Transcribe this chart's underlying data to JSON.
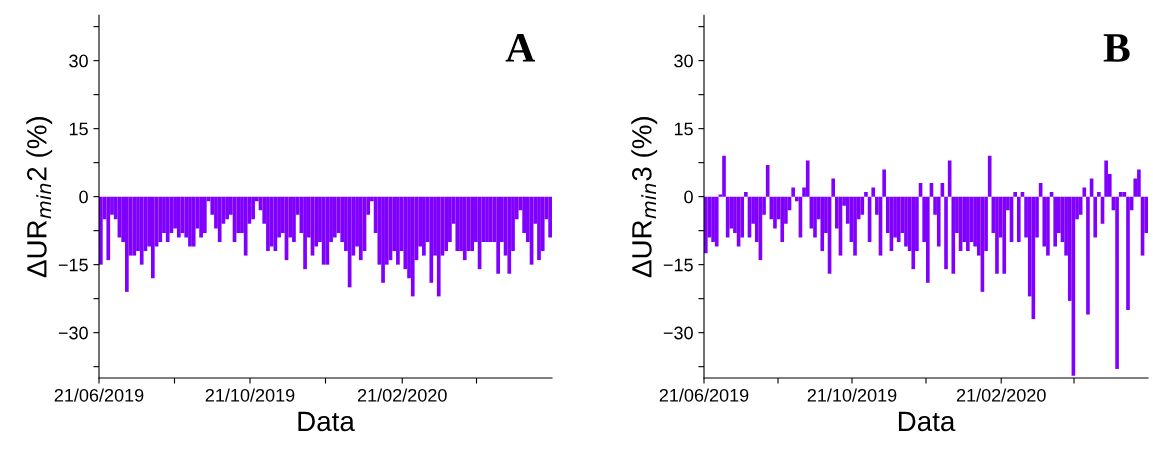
{
  "chart_data": [
    {
      "type": "bar",
      "ylabel": "ΔUR$_{min}$2 (%)",
      "xlabel": "Data",
      "annotations": [
        "A"
      ],
      "color": "#8000ff",
      "grid": false,
      "legend": false,
      "xlim": [
        "2019-06-21",
        "2020-06-21"
      ],
      "xticks": [
        {
          "value": "2019-06-21",
          "label": "21/06/2019"
        },
        {
          "value": "2019-08-21",
          "label": null
        },
        {
          "value": "2019-10-21",
          "label": "21/10/2019"
        },
        {
          "value": "2019-12-21",
          "label": null
        },
        {
          "value": "2020-02-21",
          "label": "21/02/2020"
        },
        {
          "value": "2020-04-21",
          "label": null
        }
      ],
      "ylim": [
        -40,
        40
      ],
      "yticks": [
        {
          "value": -37.5,
          "label": null
        },
        {
          "value": -30,
          "label": "−30"
        },
        {
          "value": -22.5,
          "label": null
        },
        {
          "value": -15,
          "label": "−15"
        },
        {
          "value": -7.5,
          "label": null
        },
        0,
        {
          "value": 7.5,
          "label": null
        },
        15,
        {
          "value": 22.5,
          "label": null
        },
        30,
        {
          "value": 37.5,
          "label": null
        }
      ],
      "x": [
        "2019-06-21",
        "2019-06-24",
        "2019-06-27",
        "2019-06-30",
        "2019-07-03",
        "2019-07-06",
        "2019-07-09",
        "2019-07-12",
        "2019-07-15",
        "2019-07-18",
        "2019-07-21",
        "2019-07-24",
        "2019-07-27",
        "2019-07-30",
        "2019-08-02",
        "2019-08-05",
        "2019-08-08",
        "2019-08-11",
        "2019-08-14",
        "2019-08-17",
        "2019-08-20",
        "2019-08-23",
        "2019-08-26",
        "2019-08-29",
        "2019-09-01",
        "2019-09-04",
        "2019-09-07",
        "2019-09-10",
        "2019-09-13",
        "2019-09-16",
        "2019-09-19",
        "2019-09-22",
        "2019-09-25",
        "2019-09-28",
        "2019-10-01",
        "2019-10-04",
        "2019-10-07",
        "2019-10-10",
        "2019-10-13",
        "2019-10-16",
        "2019-10-19",
        "2019-10-22",
        "2019-10-25",
        "2019-10-28",
        "2019-10-31",
        "2019-11-03",
        "2019-11-06",
        "2019-11-09",
        "2019-11-12",
        "2019-11-15",
        "2019-11-18",
        "2019-11-21",
        "2019-11-24",
        "2019-11-27",
        "2019-11-30",
        "2019-12-03",
        "2019-12-06",
        "2019-12-09",
        "2019-12-12",
        "2019-12-15",
        "2019-12-18",
        "2019-12-21",
        "2019-12-24",
        "2019-12-27",
        "2019-12-30",
        "2020-01-02",
        "2020-01-05",
        "2020-01-08",
        "2020-01-11",
        "2020-01-14",
        "2020-01-17",
        "2020-01-20",
        "2020-01-23",
        "2020-01-26",
        "2020-01-29",
        "2020-02-01",
        "2020-02-04",
        "2020-02-07",
        "2020-02-10",
        "2020-02-13",
        "2020-02-16",
        "2020-02-19",
        "2020-02-22",
        "2020-02-25",
        "2020-02-28",
        "2020-03-02",
        "2020-03-05",
        "2020-03-08",
        "2020-03-11",
        "2020-03-14",
        "2020-03-17",
        "2020-03-20",
        "2020-03-23",
        "2020-03-26",
        "2020-03-29",
        "2020-04-01",
        "2020-04-04",
        "2020-04-07",
        "2020-04-10",
        "2020-04-13",
        "2020-04-16",
        "2020-04-19",
        "2020-04-22",
        "2020-04-25",
        "2020-04-28",
        "2020-05-01",
        "2020-05-04",
        "2020-05-07",
        "2020-05-10",
        "2020-05-13",
        "2020-05-16",
        "2020-05-19",
        "2020-05-22",
        "2020-05-25",
        "2020-05-28",
        "2020-05-31",
        "2020-06-03",
        "2020-06-06",
        "2020-06-09",
        "2020-06-12",
        "2020-06-15",
        "2020-06-18"
      ],
      "values": [
        -15,
        -5,
        -14,
        -4,
        -5,
        -9,
        -10,
        -21,
        -13,
        -13,
        -12,
        -15,
        -12,
        -11,
        -18,
        -11,
        -10,
        -8,
        -10,
        -8,
        -7,
        -9,
        -8,
        -9,
        -11,
        -11,
        -7,
        -9,
        -8,
        -1,
        -4,
        -7,
        -10,
        -6,
        -5,
        -4,
        -10,
        -8,
        -8,
        -13,
        -6,
        -5,
        -1,
        -3,
        -6,
        -12,
        -11,
        -12,
        -9,
        -8,
        -14,
        -9,
        -10,
        -4,
        -8,
        -16,
        -9,
        -13,
        -11,
        -10,
        -15,
        -15,
        -10,
        -9,
        -8,
        -10,
        -12,
        -20,
        -13,
        -11,
        -14,
        -12,
        -4,
        -1,
        -8,
        -15,
        -19,
        -15,
        -14,
        -12,
        -15,
        -12,
        -16,
        -18,
        -22,
        -14,
        -11,
        -13,
        -10,
        -19,
        -13,
        -22,
        -13,
        -12,
        -10,
        -6,
        -12,
        -12,
        -14,
        -12,
        -12,
        -10,
        -16,
        -10,
        -10,
        -10,
        -10,
        -17,
        -10,
        -13,
        -17,
        -12,
        -5,
        -3,
        -8,
        -10,
        -15,
        -6,
        -14,
        -12,
        -5,
        -9
      ]
    },
    {
      "type": "bar",
      "ylabel": "ΔUR$_{min}$3 (%)",
      "xlabel": "Data",
      "annotations": [
        "B"
      ],
      "color": "#8000ff",
      "grid": false,
      "legend": false,
      "xlim": [
        "2019-06-21",
        "2020-06-21"
      ],
      "xticks": [
        {
          "value": "2019-06-21",
          "label": "21/06/2019"
        },
        {
          "value": "2019-08-21",
          "label": null
        },
        {
          "value": "2019-10-21",
          "label": "21/10/2019"
        },
        {
          "value": "2019-12-21",
          "label": null
        },
        {
          "value": "2020-02-21",
          "label": "21/02/2020"
        },
        {
          "value": "2020-04-21",
          "label": null
        }
      ],
      "ylim": [
        -40,
        40
      ],
      "yticks": [
        {
          "value": -37.5,
          "label": null
        },
        {
          "value": -30,
          "label": "−30"
        },
        {
          "value": -22.5,
          "label": null
        },
        {
          "value": -15,
          "label": "−15"
        },
        {
          "value": -7.5,
          "label": null
        },
        0,
        {
          "value": 7.5,
          "label": null
        },
        15,
        {
          "value": 22.5,
          "label": null
        },
        30,
        {
          "value": 37.5,
          "label": null
        }
      ],
      "x": [
        "2019-06-21",
        "2019-06-24",
        "2019-06-27",
        "2019-06-30",
        "2019-07-03",
        "2019-07-06",
        "2019-07-09",
        "2019-07-12",
        "2019-07-15",
        "2019-07-18",
        "2019-07-21",
        "2019-07-24",
        "2019-07-27",
        "2019-07-30",
        "2019-08-02",
        "2019-08-05",
        "2019-08-08",
        "2019-08-11",
        "2019-08-14",
        "2019-08-17",
        "2019-08-20",
        "2019-08-23",
        "2019-08-26",
        "2019-08-29",
        "2019-09-01",
        "2019-09-04",
        "2019-09-07",
        "2019-09-10",
        "2019-09-13",
        "2019-09-16",
        "2019-09-19",
        "2019-09-22",
        "2019-09-25",
        "2019-09-28",
        "2019-10-01",
        "2019-10-04",
        "2019-10-07",
        "2019-10-10",
        "2019-10-13",
        "2019-10-16",
        "2019-10-19",
        "2019-10-22",
        "2019-10-25",
        "2019-10-28",
        "2019-10-31",
        "2019-11-03",
        "2019-11-06",
        "2019-11-09",
        "2019-11-12",
        "2019-11-15",
        "2019-11-18",
        "2019-11-21",
        "2019-11-24",
        "2019-11-27",
        "2019-11-30",
        "2019-12-03",
        "2019-12-06",
        "2019-12-09",
        "2019-12-12",
        "2019-12-15",
        "2019-12-18",
        "2019-12-21",
        "2019-12-24",
        "2019-12-27",
        "2019-12-30",
        "2020-01-02",
        "2020-01-05",
        "2020-01-08",
        "2020-01-11",
        "2020-01-14",
        "2020-01-17",
        "2020-01-20",
        "2020-01-23",
        "2020-01-26",
        "2020-01-29",
        "2020-02-01",
        "2020-02-04",
        "2020-02-07",
        "2020-02-10",
        "2020-02-13",
        "2020-02-16",
        "2020-02-19",
        "2020-02-22",
        "2020-02-25",
        "2020-02-28",
        "2020-03-02",
        "2020-03-05",
        "2020-03-08",
        "2020-03-11",
        "2020-03-14",
        "2020-03-17",
        "2020-03-20",
        "2020-03-23",
        "2020-03-26",
        "2020-03-29",
        "2020-04-01",
        "2020-04-04",
        "2020-04-07",
        "2020-04-10",
        "2020-04-13",
        "2020-04-16",
        "2020-04-19",
        "2020-04-22",
        "2020-04-25",
        "2020-04-28",
        "2020-05-01",
        "2020-05-04",
        "2020-05-07",
        "2020-05-10",
        "2020-05-13",
        "2020-05-16",
        "2020-05-19",
        "2020-05-22",
        "2020-05-25",
        "2020-05-28",
        "2020-05-31",
        "2020-06-03",
        "2020-06-06",
        "2020-06-09",
        "2020-06-12",
        "2020-06-15",
        "2020-06-18"
      ],
      "values": [
        -12.5,
        -9,
        -10,
        -11,
        0.5,
        9,
        -9,
        -7,
        -8,
        -11,
        -9,
        1,
        -9,
        -6,
        -10,
        -14,
        -4,
        7,
        -5,
        -7,
        -5,
        -10,
        -6,
        -3,
        2,
        -1,
        -9,
        2,
        8,
        -7,
        -9,
        -5,
        -12,
        -8,
        -17,
        4,
        -7,
        -13,
        -2,
        -6,
        -10,
        -13,
        -5,
        -4,
        1,
        -10,
        2,
        -4,
        -13,
        6,
        -8,
        -12,
        -9,
        -10,
        -8,
        -11,
        -12,
        -16,
        -12,
        3,
        -10,
        -19,
        3,
        -4,
        -11,
        3,
        -16,
        8,
        -17,
        -8,
        -12,
        -10,
        -12,
        -10,
        -11,
        -13,
        -21,
        -12,
        9,
        -8,
        -17,
        -9,
        -17,
        -3,
        -10,
        1,
        -10,
        1,
        -9,
        -22,
        -27,
        -9,
        3,
        -11,
        -13,
        1,
        -11,
        -8,
        -10,
        -13,
        -23,
        -39.5,
        -5,
        -4,
        2,
        -26,
        4,
        -9,
        1,
        -6,
        8,
        5,
        -3,
        -38,
        1,
        1,
        -25,
        -3,
        4,
        6,
        -13,
        -8
      ]
    }
  ]
}
